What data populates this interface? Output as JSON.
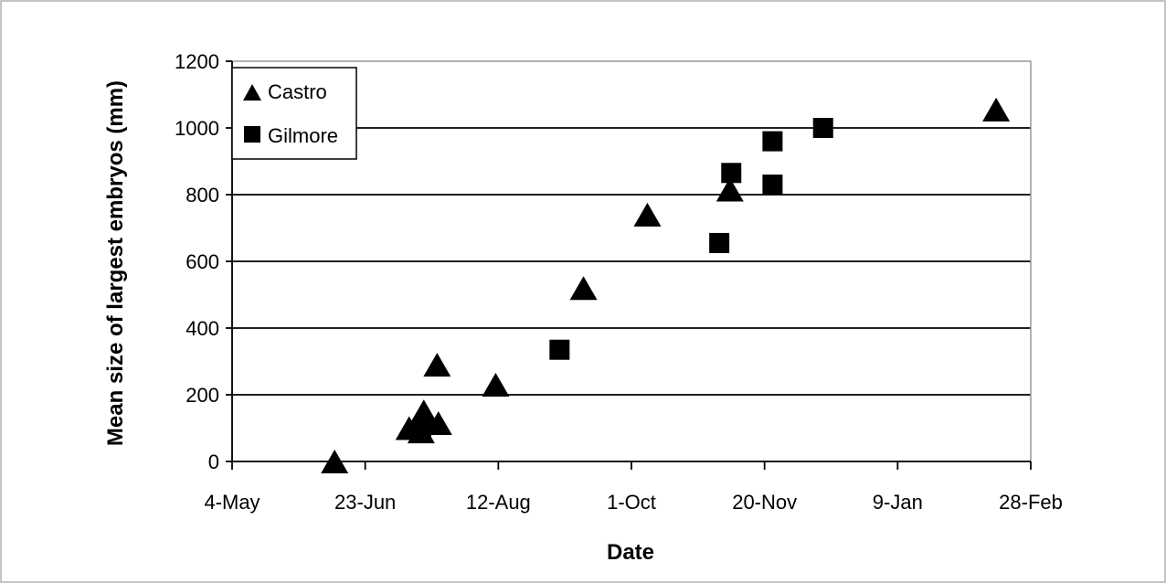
{
  "chart_data": {
    "type": "scatter",
    "xlabel": "Date",
    "ylabel": "Mean size of largest embryos (mm)",
    "x_ticks": [
      "4-May",
      "23-Jun",
      "12-Aug",
      "1-Oct",
      "20-Nov",
      "9-Jan",
      "28-Feb"
    ],
    "x_tick_values": [
      0,
      50,
      100,
      150,
      200,
      250,
      300
    ],
    "ylim": [
      0,
      1200
    ],
    "y_ticks": [
      0,
      200,
      400,
      600,
      800,
      1000,
      1200
    ],
    "xlim": [
      0,
      300
    ],
    "grid": "horizontal",
    "legend_position": "top-left",
    "series": [
      {
        "name": "Castro",
        "marker": "triangle",
        "color": "#000000",
        "points": [
          {
            "x": 38.5,
            "y": 0
          },
          {
            "x": 66.5,
            "y": 100
          },
          {
            "x": 71,
            "y": 90
          },
          {
            "x": 72,
            "y": 150
          },
          {
            "x": 77.5,
            "y": 115
          },
          {
            "x": 77,
            "y": 290
          },
          {
            "x": 99,
            "y": 230
          },
          {
            "x": 132,
            "y": 520
          },
          {
            "x": 156,
            "y": 740
          },
          {
            "x": 187,
            "y": 815
          },
          {
            "x": 287,
            "y": 1055
          }
        ]
      },
      {
        "name": "Gilmore",
        "marker": "square",
        "color": "#000000",
        "points": [
          {
            "x": 71,
            "y": 85
          },
          {
            "x": 123,
            "y": 335
          },
          {
            "x": 183,
            "y": 655
          },
          {
            "x": 187.5,
            "y": 865
          },
          {
            "x": 203,
            "y": 960
          },
          {
            "x": 203,
            "y": 830
          },
          {
            "x": 222,
            "y": 1000
          }
        ]
      }
    ]
  }
}
